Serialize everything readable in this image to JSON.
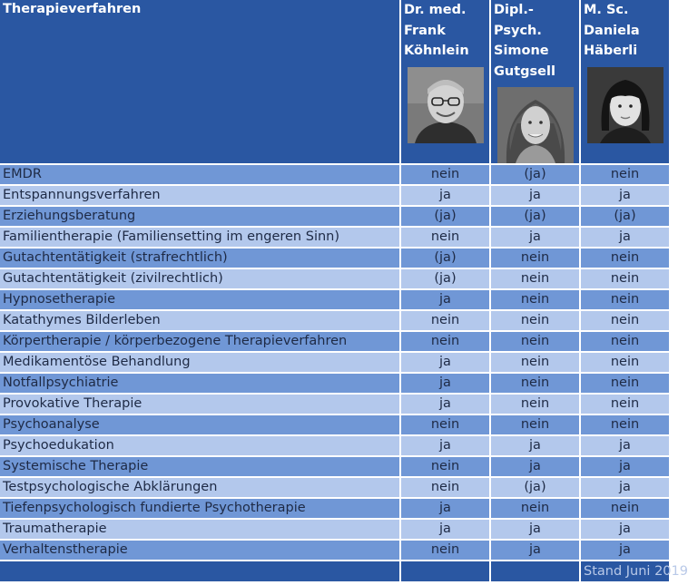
{
  "header": {
    "therapy_label": "Therapieverfahren",
    "persons": [
      {
        "title": "Dr. med.",
        "first": "Frank",
        "last": "Köhnlein"
      },
      {
        "title": "Dipl.-Psych.",
        "first": "Simone",
        "last": "Gutgsell"
      },
      {
        "title": "M. Sc.",
        "first": "Daniela",
        "last": "Häberli"
      }
    ]
  },
  "rows": [
    {
      "name": "EMDR",
      "v": [
        "nein",
        "(ja)",
        "nein"
      ]
    },
    {
      "name": "Entspannungsverfahren",
      "v": [
        "ja",
        "ja",
        "ja"
      ]
    },
    {
      "name": "Erziehungsberatung",
      "v": [
        "(ja)",
        "(ja)",
        "(ja)"
      ]
    },
    {
      "name": "Familientherapie (Familiensetting im engeren Sinn)",
      "v": [
        "nein",
        "ja",
        "ja"
      ]
    },
    {
      "name": "Gutachtentätigkeit (strafrechtlich)",
      "v": [
        "(ja)",
        "nein",
        "nein"
      ]
    },
    {
      "name": "Gutachtentätigkeit (zivilrechtlich)",
      "v": [
        "(ja)",
        "nein",
        "nein"
      ]
    },
    {
      "name": "Hypnosetherapie",
      "v": [
        "ja",
        "nein",
        "nein"
      ]
    },
    {
      "name": "Katathymes Bilderleben",
      "v": [
        "nein",
        "nein",
        "nein"
      ]
    },
    {
      "name": "Körpertherapie / körperbezogene Therapieverfahren",
      "v": [
        "nein",
        "nein",
        "nein"
      ]
    },
    {
      "name": "Medikamentöse Behandlung",
      "v": [
        "ja",
        "nein",
        "nein"
      ]
    },
    {
      "name": "Notfallpsychiatrie",
      "v": [
        "ja",
        "nein",
        "nein"
      ]
    },
    {
      "name": "Provokative Therapie",
      "v": [
        "ja",
        "nein",
        "nein"
      ]
    },
    {
      "name": "Psychoanalyse",
      "v": [
        "nein",
        "nein",
        "nein"
      ]
    },
    {
      "name": "Psychoedukation",
      "v": [
        "ja",
        "ja",
        "ja"
      ]
    },
    {
      "name": "Systemische Therapie",
      "v": [
        "nein",
        "ja",
        "ja"
      ]
    },
    {
      "name": "Testpsychologische Abklärungen",
      "v": [
        "nein",
        "(ja)",
        "ja"
      ]
    },
    {
      "name": "Tiefenpsychologisch fundierte Psychotherapie",
      "v": [
        "ja",
        "nein",
        "nein"
      ]
    },
    {
      "name": "Traumatherapie",
      "v": [
        "ja",
        "ja",
        "ja"
      ]
    },
    {
      "name": "Verhaltenstherapie",
      "v": [
        "nein",
        "ja",
        "ja"
      ]
    }
  ],
  "footer": {
    "note": "Stand Juni 2019"
  },
  "colors": {
    "header_bg": "#2a57a2",
    "row_dark": "#7097d6",
    "row_light": "#b3c8ec"
  }
}
